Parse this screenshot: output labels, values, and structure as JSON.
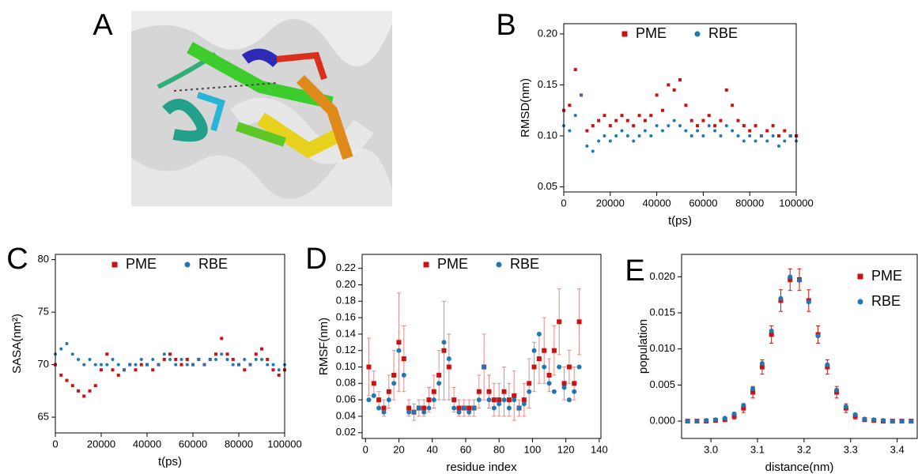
{
  "figure": {
    "panel_label": "A"
  },
  "chart_data": [
    {
      "type": "scatter",
      "panel_label": "B",
      "xlabel": "t(ps)",
      "ylabel": "RMSD(nm)",
      "xlim": [
        0,
        100000
      ],
      "xticks": [
        0,
        20000,
        40000,
        60000,
        80000,
        100000
      ],
      "ylim": [
        0.045,
        0.21
      ],
      "yticks": [
        0.05,
        {
          "value": 0.1,
          "label": "0.10"
        },
        0.15,
        {
          "value": 0.2,
          "label": "0.20"
        }
      ],
      "legend": "top",
      "x": [
        0,
        2500,
        5000,
        7500,
        10000,
        12500,
        15000,
        17500,
        20000,
        22500,
        25000,
        27500,
        30000,
        32500,
        35000,
        37500,
        40000,
        42500,
        45000,
        47500,
        50000,
        52500,
        55000,
        57500,
        60000,
        62500,
        65000,
        67500,
        70000,
        72500,
        75000,
        77500,
        80000,
        82500,
        85000,
        87500,
        90000,
        92500,
        95000,
        97500,
        100000
      ],
      "series": [
        {
          "name": "PME",
          "color": "#cc1111",
          "marker": "square",
          "values": [
            0.125,
            0.13,
            0.165,
            0.14,
            0.105,
            0.11,
            0.115,
            0.12,
            0.11,
            0.115,
            0.12,
            0.115,
            0.11,
            0.12,
            0.115,
            0.12,
            0.14,
            0.125,
            0.15,
            0.145,
            0.155,
            0.13,
            0.115,
            0.11,
            0.115,
            0.12,
            0.11,
            0.115,
            0.145,
            0.13,
            0.115,
            0.11,
            0.105,
            0.11,
            0.1,
            0.105,
            0.11,
            0.1,
            0.105,
            0.1,
            0.1
          ]
        },
        {
          "name": "RBE",
          "color": "#1f77b4",
          "marker": "circle",
          "values": [
            0.11,
            0.105,
            0.12,
            0.14,
            0.09,
            0.085,
            0.095,
            0.1,
            0.095,
            0.1,
            0.105,
            0.1,
            0.095,
            0.1,
            0.105,
            0.1,
            0.11,
            0.105,
            0.11,
            0.115,
            0.11,
            0.105,
            0.1,
            0.105,
            0.1,
            0.11,
            0.105,
            0.1,
            0.11,
            0.105,
            0.1,
            0.095,
            0.1,
            0.095,
            0.1,
            0.095,
            0.1,
            0.09,
            0.095,
            0.1,
            0.095
          ]
        }
      ]
    },
    {
      "type": "scatter",
      "panel_label": "C",
      "xlabel": "t(ps)",
      "ylabel": "SASA(nm²)",
      "xlim": [
        0,
        100000
      ],
      "xticks": [
        0,
        20000,
        40000,
        60000,
        80000,
        100000
      ],
      "ylim": [
        63.5,
        80.5
      ],
      "yticks": [
        65,
        70,
        75,
        80
      ],
      "legend": "top",
      "x": [
        0,
        2500,
        5000,
        7500,
        10000,
        12500,
        15000,
        17500,
        20000,
        22500,
        25000,
        27500,
        30000,
        32500,
        35000,
        37500,
        40000,
        42500,
        45000,
        47500,
        50000,
        52500,
        55000,
        57500,
        60000,
        62500,
        65000,
        67500,
        70000,
        72500,
        75000,
        77500,
        80000,
        82500,
        85000,
        87500,
        90000,
        92500,
        95000,
        97500,
        100000
      ],
      "series": [
        {
          "name": "PME",
          "color": "#cc1111",
          "marker": "square",
          "values": [
            70,
            69,
            68.5,
            68,
            67.5,
            67,
            67.5,
            68,
            69.5,
            71,
            69.5,
            69,
            69.5,
            70,
            69.5,
            70,
            70,
            69.5,
            70,
            70.5,
            71,
            70.5,
            70,
            70.5,
            70,
            70.5,
            70,
            70.5,
            71,
            72.5,
            71,
            70.5,
            70,
            69.5,
            70,
            71,
            71.5,
            70.5,
            69.5,
            69,
            69.5
          ]
        },
        {
          "name": "RBE",
          "color": "#1f77b4",
          "marker": "circle",
          "values": [
            71,
            71.5,
            72,
            71,
            70.5,
            70,
            70.5,
            70,
            70,
            70,
            70.5,
            70,
            69.5,
            70,
            70,
            70.5,
            70,
            70.5,
            70,
            71,
            70.5,
            70,
            70.5,
            70,
            70,
            70.5,
            70,
            70.5,
            70.5,
            71,
            70.5,
            70,
            70,
            70.5,
            70,
            70.5,
            70.5,
            70,
            70,
            69.5,
            70
          ]
        }
      ]
    },
    {
      "type": "scatter",
      "panel_label": "D",
      "xlabel": "residue index",
      "ylabel": "RMSF(nm)",
      "xlim": [
        -2,
        141
      ],
      "xticks": [
        0,
        20,
        40,
        60,
        80,
        100,
        120,
        140
      ],
      "ylim": [
        0.013,
        0.237
      ],
      "yticks": [
        0.02,
        0.04,
        0.06,
        0.08,
        {
          "value": 0.1,
          "label": "0.10"
        },
        0.12,
        0.14,
        0.16,
        0.18,
        {
          "value": 0.2,
          "label": "0.20"
        },
        0.22
      ],
      "legend": "top",
      "x": [
        2,
        5,
        8,
        11,
        14,
        17,
        20,
        23,
        26,
        29,
        32,
        35,
        38,
        41,
        44,
        47,
        50,
        53,
        56,
        59,
        62,
        65,
        68,
        71,
        74,
        77,
        80,
        83,
        86,
        89,
        92,
        95,
        98,
        101,
        104,
        107,
        110,
        113,
        116,
        119,
        122,
        125,
        128
      ],
      "series": [
        {
          "name": "PME",
          "color": "#cc1111",
          "error_color": "#e58a8a",
          "marker": "square",
          "values": [
            0.1,
            0.08,
            0.06,
            0.05,
            0.07,
            0.09,
            0.13,
            0.11,
            0.05,
            0.045,
            0.05,
            0.05,
            0.06,
            0.07,
            0.09,
            0.12,
            0.1,
            0.06,
            0.05,
            0.05,
            0.05,
            0.05,
            0.07,
            0.1,
            0.07,
            0.06,
            0.06,
            0.07,
            0.06,
            0.065,
            0.05,
            0.06,
            0.08,
            0.1,
            0.11,
            0.12,
            0.09,
            0.12,
            0.155,
            0.08,
            0.1,
            0.08,
            0.155
          ],
          "errors": [
            0.035,
            0.015,
            0.01,
            0.01,
            0.02,
            0.03,
            0.06,
            0.04,
            0.01,
            0.01,
            0.01,
            0.01,
            0.015,
            0.02,
            0.03,
            0.06,
            0.04,
            0.015,
            0.01,
            0.01,
            0.01,
            0.01,
            0.02,
            0.04,
            0.02,
            0.02,
            0.02,
            0.03,
            0.02,
            0.03,
            0.01,
            0.02,
            0.03,
            0.03,
            0.03,
            0.04,
            0.02,
            0.03,
            0.04,
            0.02,
            0.02,
            0.02,
            0.04
          ]
        },
        {
          "name": "RBE",
          "color": "#1f77b4",
          "marker": "circle",
          "values": [
            0.06,
            0.065,
            0.05,
            0.045,
            0.06,
            0.08,
            0.12,
            0.09,
            0.045,
            0.045,
            0.05,
            0.045,
            0.05,
            0.06,
            0.08,
            0.13,
            0.11,
            0.05,
            0.045,
            0.05,
            0.045,
            0.05,
            0.06,
            0.1,
            0.06,
            0.05,
            0.055,
            0.06,
            0.05,
            0.06,
            0.05,
            0.055,
            0.07,
            0.12,
            0.14,
            0.1,
            0.08,
            0.07,
            0.1,
            0.075,
            0.06,
            0.07,
            0.1
          ]
        }
      ]
    },
    {
      "type": "scatter",
      "panel_label": "E",
      "xlabel": "distance(nm)",
      "ylabel": "population",
      "xlim": [
        2.937,
        3.443
      ],
      "xticks": [
        {
          "value": 3.0,
          "label": "3.0"
        },
        3.1,
        3.2,
        3.3,
        3.4
      ],
      "ylim": [
        -0.0024,
        0.0231
      ],
      "yticks": [
        {
          "value": 0,
          "label": "0.000"
        },
        {
          "value": 0.005,
          "label": "0.005"
        },
        {
          "value": 0.01,
          "label": "0.010"
        },
        {
          "value": 0.015,
          "label": "0.015"
        },
        {
          "value": 0.02,
          "label": "0.020"
        }
      ],
      "legend": "top-right",
      "x": [
        2.95,
        2.97,
        2.99,
        3.01,
        3.03,
        3.05,
        3.07,
        3.09,
        3.11,
        3.13,
        3.15,
        3.17,
        3.19,
        3.21,
        3.23,
        3.25,
        3.27,
        3.29,
        3.31,
        3.33,
        3.35,
        3.37,
        3.39,
        3.41,
        3.43
      ],
      "series": [
        {
          "name": "PME",
          "color": "#cc1111",
          "error_color": "#cc1111",
          "marker": "square",
          "values": [
            0,
            0,
            0,
            0.0001,
            0.0002,
            0.0007,
            0.0018,
            0.004,
            0.0075,
            0.012,
            0.0167,
            0.0196,
            0.0196,
            0.0167,
            0.012,
            0.0075,
            0.004,
            0.0018,
            0.0007,
            0.0002,
            0.0001,
            0,
            0,
            0,
            0
          ],
          "errors": [
            0,
            0,
            0,
            0.0001,
            0.0002,
            0.0004,
            0.0006,
            0.0008,
            0.001,
            0.0012,
            0.0015,
            0.0015,
            0.0015,
            0.0015,
            0.0012,
            0.001,
            0.0008,
            0.0006,
            0.0004,
            0.0002,
            0.0001,
            0,
            0,
            0,
            0
          ]
        },
        {
          "name": "RBE",
          "color": "#1f77b4",
          "marker": "circle",
          "values": [
            0,
            0,
            0.0001,
            0.0002,
            0.0004,
            0.001,
            0.0022,
            0.0045,
            0.008,
            0.0125,
            0.017,
            0.02,
            0.0195,
            0.0165,
            0.0118,
            0.0078,
            0.0043,
            0.002,
            0.0009,
            0.0003,
            0.0002,
            0.0001,
            0,
            0,
            0
          ]
        }
      ]
    }
  ]
}
